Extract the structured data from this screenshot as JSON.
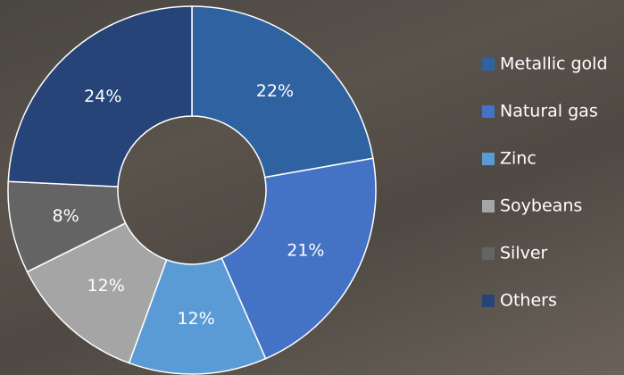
{
  "chart_data": {
    "type": "donut",
    "categories": [
      "Metallic gold",
      "Natural gas",
      "Zinc",
      "Soybeans",
      "Silver",
      "Others"
    ],
    "values": [
      22,
      21,
      12,
      12,
      8,
      24
    ],
    "value_labels": [
      "22%",
      "21%",
      "12%",
      "12%",
      "8%",
      "24%"
    ],
    "colors": [
      "#2e62a0",
      "#4472c4",
      "#5b9bd5",
      "#a5a5a5",
      "#646464",
      "#264478"
    ],
    "legend": "right"
  }
}
